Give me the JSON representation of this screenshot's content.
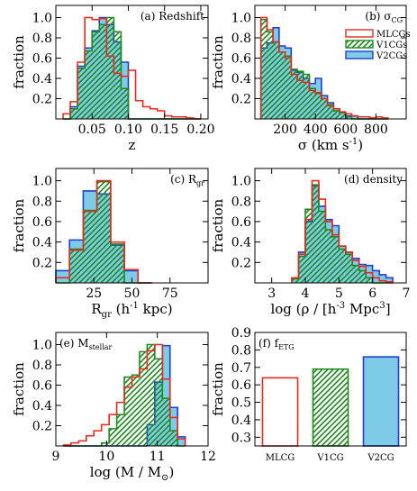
{
  "figure": {
    "series_styles": {
      "MLCGs": {
        "stroke": "#e8291f",
        "fill": "none",
        "hatch": false
      },
      "V1CGs": {
        "stroke": "#208a20",
        "fill": "none",
        "hatch": true
      },
      "V2CGs": {
        "stroke": "#1f3fd0",
        "fill": "#7ecbe8",
        "hatch": false
      }
    },
    "legend": {
      "entries": [
        "MLCGs",
        "V1CGs",
        "V2CGs"
      ],
      "panel": 1,
      "placement": "top-right"
    }
  },
  "chart_data": [
    {
      "type": "histogram",
      "title": "(a) Redshift",
      "xlabel": "z",
      "ylabel": "fraction",
      "xlim": [
        0,
        0.21
      ],
      "ylim": [
        0,
        1.12
      ],
      "xticks": [
        0.05,
        0.1,
        0.15,
        0.2
      ],
      "xticklabels": [
        "0.05",
        "0.10",
        "0.15",
        "0.20"
      ],
      "yticks": [
        0.2,
        0.4,
        0.6,
        0.8,
        1.0
      ],
      "yticklabels": [
        "0.2",
        "0.4",
        "0.6",
        "0.8",
        "1.0"
      ],
      "bin_edges": [
        0.01,
        0.02,
        0.03,
        0.04,
        0.05,
        0.06,
        0.07,
        0.08,
        0.09,
        0.1,
        0.11,
        0.12,
        0.13,
        0.14,
        0.15,
        0.16,
        0.17,
        0.18,
        0.19,
        0.2
      ],
      "series": [
        {
          "name": "MLCGs",
          "values": [
            0.05,
            0.17,
            0.56,
            1.0,
            0.98,
            0.99,
            0.62,
            0.45,
            0.42,
            0.48,
            0.18,
            0.12,
            0.1,
            0.08,
            0.03,
            0.02,
            0.02,
            0.01,
            0.0
          ]
        },
        {
          "name": "V1CGs",
          "values": [
            0.0,
            0.1,
            0.5,
            0.67,
            0.86,
            0.93,
            1.0,
            0.86,
            0.3,
            0.0,
            0.0,
            0.0,
            0.0,
            0.0,
            0.0,
            0.0,
            0.0,
            0.0,
            0.0
          ]
        },
        {
          "name": "V2CGs",
          "values": [
            0.0,
            0.12,
            0.52,
            0.7,
            0.87,
            1.0,
            0.93,
            0.76,
            0.56,
            0.0,
            0.0,
            0.0,
            0.0,
            0.0,
            0.0,
            0.0,
            0.0,
            0.0,
            0.0
          ]
        }
      ]
    },
    {
      "type": "histogram",
      "title": "(b) σ",
      "title_sub": "CG",
      "xlabel": "σ (km s",
      "xlabel_sup": "-1",
      "xlabel_end": ")",
      "ylabel": "fraction",
      "xlim": [
        0,
        1000
      ],
      "ylim": [
        0,
        1.12
      ],
      "xticks": [
        200,
        400,
        600,
        800
      ],
      "xticklabels": [
        "200",
        "400",
        "600",
        "800"
      ],
      "yticks": [
        0.2,
        0.4,
        0.6,
        0.8,
        1.0
      ],
      "yticklabels": [
        "0.2",
        "0.4",
        "0.6",
        "0.8",
        "1.0"
      ],
      "bin_edges": [
        40,
        80,
        120,
        160,
        200,
        240,
        280,
        320,
        360,
        400,
        440,
        480,
        520,
        560,
        600,
        640,
        680,
        720,
        760,
        800,
        840,
        880
      ],
      "series": [
        {
          "name": "MLCGs",
          "values": [
            1.0,
            0.88,
            0.76,
            0.66,
            0.6,
            0.44,
            0.38,
            0.36,
            0.28,
            0.25,
            0.2,
            0.13,
            0.1,
            0.07,
            0.05,
            0.03,
            0.02,
            0.02,
            0.01,
            0.02,
            0.01
          ]
        },
        {
          "name": "V1CGs",
          "values": [
            0.98,
            0.86,
            0.76,
            0.66,
            0.62,
            0.49,
            0.47,
            0.44,
            0.3,
            0.26,
            0.2,
            0.14,
            0.08,
            0.06,
            0.02,
            0.0,
            0.0,
            0.0,
            0.0,
            0.0,
            0.0
          ]
        },
        {
          "name": "V2CGs",
          "values": [
            0.7,
            0.75,
            0.9,
            0.72,
            0.7,
            0.48,
            0.46,
            0.4,
            0.35,
            0.4,
            0.23,
            0.16,
            0.1,
            0.06,
            0.03,
            0.03,
            0.0,
            0.0,
            0.0,
            0.0,
            0.0
          ]
        }
      ]
    },
    {
      "type": "histogram",
      "title": "(c) R",
      "title_sub": "gr",
      "xlabel": "R",
      "xlabel_sub": "gr",
      "xlabel_mid": " (h",
      "xlabel_sup": "-1",
      "xlabel_end": " kpc)",
      "ylabel": "fraction",
      "xlim": [
        0,
        100
      ],
      "ylim": [
        0,
        1.12
      ],
      "xticks": [
        25,
        50,
        75
      ],
      "xticklabels": [
        "25",
        "50",
        "75"
      ],
      "yticks": [
        0.2,
        0.4,
        0.6,
        0.8,
        1.0
      ],
      "yticklabels": [
        "0.2",
        "0.4",
        "0.6",
        "0.8",
        "1.0"
      ],
      "bin_edges": [
        0,
        9,
        18,
        27,
        36,
        45,
        54,
        63
      ],
      "series": [
        {
          "name": "MLCGs",
          "values": [
            0.05,
            0.32,
            0.7,
            1.0,
            0.4,
            0.13,
            0.0
          ]
        },
        {
          "name": "V1CGs",
          "values": [
            0.0,
            0.33,
            0.71,
            0.99,
            0.38,
            0.0,
            0.0
          ]
        },
        {
          "name": "V2CGs",
          "values": [
            0.12,
            0.42,
            0.9,
            0.87,
            0.37,
            0.12,
            0.0
          ]
        }
      ]
    },
    {
      "type": "histogram",
      "title": "(d) density",
      "xlabel": "log (ρ / [h",
      "xlabel_sup": "-3",
      "xlabel_end": " Mpc",
      "xlabel_sup2": "3",
      "xlabel_end2": "]",
      "ylabel": "fraction",
      "xlim": [
        2.5,
        7
      ],
      "ylim": [
        0,
        1.12
      ],
      "xticks": [
        3,
        4,
        5,
        6,
        7
      ],
      "xticklabels": [
        "3",
        "4",
        "5",
        "6",
        "7"
      ],
      "yticks": [
        0.2,
        0.4,
        0.6,
        0.8,
        1.0
      ],
      "yticklabels": [
        "0.2",
        "0.4",
        "0.6",
        "0.8",
        "1.0"
      ],
      "bin_edges": [
        3.6,
        3.8,
        4.0,
        4.2,
        4.4,
        4.6,
        4.8,
        5.0,
        5.2,
        5.4,
        5.6,
        5.8,
        6.0,
        6.2,
        6.4,
        6.6
      ],
      "series": [
        {
          "name": "MLCGs",
          "values": [
            0.05,
            0.28,
            0.62,
            1.0,
            0.82,
            0.6,
            0.47,
            0.36,
            0.3,
            0.22,
            0.16,
            0.1,
            0.05,
            0.02,
            0.01
          ]
        },
        {
          "name": "V1CGs",
          "values": [
            0.04,
            0.26,
            0.72,
            0.96,
            0.7,
            0.52,
            0.45,
            0.33,
            0.28,
            0.17,
            0.12,
            0.05,
            0.0,
            0.0,
            0.0
          ]
        },
        {
          "name": "V2CGs",
          "values": [
            0.05,
            0.3,
            0.6,
            0.95,
            0.75,
            0.62,
            0.56,
            0.36,
            0.3,
            0.24,
            0.18,
            0.17,
            0.12,
            0.08,
            0.05
          ]
        }
      ]
    },
    {
      "type": "histogram",
      "title": "(e) M",
      "title_sub": "stellar",
      "xlabel": "log (M / M",
      "xlabel_sub": "⊙",
      "xlabel_end": ")",
      "ylabel": "fraction",
      "xlim": [
        9,
        12
      ],
      "ylim": [
        0,
        1.12
      ],
      "xticks": [
        9,
        10,
        11,
        12
      ],
      "xticklabels": [
        "9",
        "10",
        "11",
        "12"
      ],
      "yticks": [
        0.2,
        0.4,
        0.6,
        0.8,
        1.0
      ],
      "yticklabels": [
        "0.2",
        "0.4",
        "0.6",
        "0.8",
        "1.0"
      ],
      "bin_edges": [
        9.15,
        9.3,
        9.45,
        9.6,
        9.75,
        9.9,
        10.05,
        10.2,
        10.35,
        10.5,
        10.65,
        10.8,
        10.95,
        11.1,
        11.25,
        11.4,
        11.55
      ],
      "series": [
        {
          "name": "MLCGs",
          "values": [
            0.01,
            0.03,
            0.05,
            0.1,
            0.15,
            0.21,
            0.31,
            0.43,
            0.58,
            0.68,
            0.76,
            0.94,
            1.0,
            0.66,
            0.28,
            0.07
          ]
        },
        {
          "name": "V1CGs",
          "values": [
            0.0,
            0.0,
            0.0,
            0.0,
            0.0,
            0.03,
            0.17,
            0.31,
            0.68,
            0.7,
            0.93,
            1.0,
            0.86,
            0.47,
            0.15,
            0.0
          ]
        },
        {
          "name": "V2CGs",
          "values": [
            0.0,
            0.0,
            0.0,
            0.0,
            0.0,
            0.0,
            0.0,
            0.0,
            0.0,
            0.0,
            0.0,
            0.21,
            0.63,
            0.99,
            0.38,
            0.09
          ]
        }
      ]
    },
    {
      "type": "bar",
      "title": "(f) f",
      "title_sub": "ETG",
      "xlabel": "",
      "ylabel": "fraction",
      "categories": [
        "MLCG",
        "V1CG",
        "V2CG"
      ],
      "values": [
        0.64,
        0.69,
        0.76
      ],
      "ylim": [
        0.25,
        0.9
      ],
      "yticks": [
        0.3,
        0.4,
        0.5,
        0.6,
        0.7,
        0.8,
        0.9
      ],
      "yticklabels": [
        "0.3",
        "0.4",
        "0.5",
        "0.6",
        "0.7",
        "0.8",
        "0.9"
      ]
    }
  ]
}
